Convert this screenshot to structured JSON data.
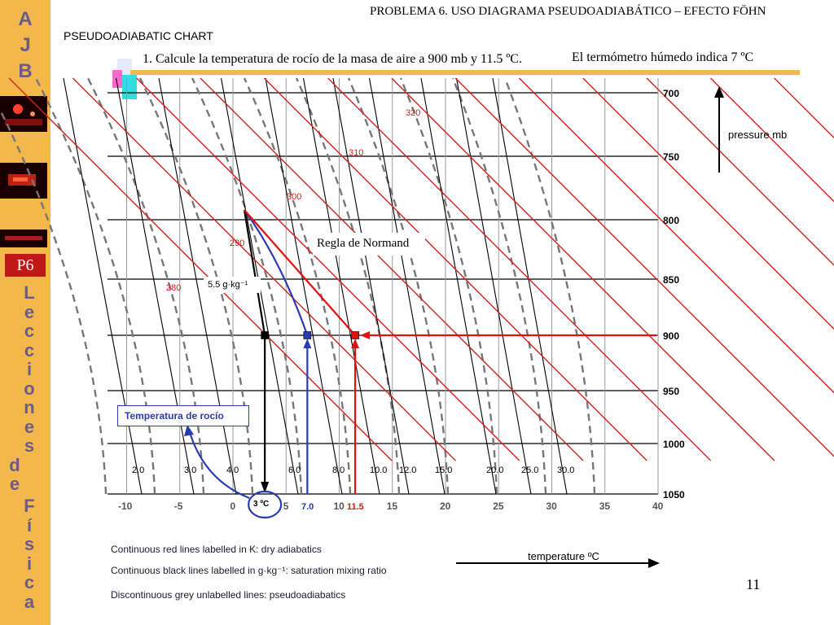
{
  "slide": {
    "heading": "PROBLEMA 6. USO DIAGRAMA PSEUDOADIABÁTICO – EFECTO FÖHN",
    "chart_title": "PSEUDOADIABATIC CHART",
    "question": "1. Calcule la temperatura de rocío de la masa de aire a 900 mb y 11.5 ºC.",
    "wet_bulb_note": "El termómetro húmedo indica 7 ºC",
    "page_number": "11",
    "sidebar": {
      "letters": [
        "A",
        "J",
        "B"
      ],
      "badge": "P6",
      "vertical_word_1": [
        "L",
        "e",
        "c",
        "c",
        "i",
        "o",
        "n",
        "e",
        "s"
      ],
      "vertical_word_2": [
        "d",
        "e"
      ],
      "vertical_word_3": [
        "F",
        "í",
        "s",
        "i",
        "c",
        "a"
      ]
    },
    "legend": [
      "Continuous red lines labelled in K: dry adiabatics",
      "Continuous black lines labelled in g·kg⁻¹: saturation mixing ratio",
      "Discontinuous grey unlabelled lines: pseudoadiabatics"
    ],
    "pressure_axis_label": "pressure mb",
    "temperature_axis_label": "temperature ºC",
    "annotations": {
      "normand": "Regla de Normand",
      "mixing_ratio": "5.5 g·kg⁻¹",
      "dew_point_box": "Temperatura de rocío",
      "dew_point_value": "3 ºC",
      "wet_bulb_value": "7.0",
      "dry_bulb_value": "11.5"
    },
    "colors": {
      "sidebar": "#f2b84b",
      "dry_adiabat": "#d42020",
      "mixing_ratio_line": "#000000",
      "pseudoadiabat": "#777777",
      "construction_blue": "#2b3bb0",
      "construction_red": "#e01010"
    }
  },
  "chart_data": {
    "type": "thermodynamic-diagram",
    "pressure_levels_mb": [
      "700",
      "750",
      "800",
      "850",
      "900",
      "950",
      "1000",
      "1050"
    ],
    "temperature_ticks_c": [
      "-10",
      "-5",
      "0",
      "5",
      "10",
      "15",
      "20",
      "25",
      "30",
      "35",
      "40"
    ],
    "mixing_ratio_labels": [
      "2.0",
      "3.0",
      "4.0",
      "6.0",
      "8.0",
      "10.0",
      "12.0",
      "15.0",
      "20.0",
      "25.0",
      "30.0"
    ],
    "dry_adiabat_labels_k": [
      "280",
      "290",
      "300",
      "310",
      "320"
    ],
    "points": [
      {
        "name": "dew point",
        "p_mb": 900,
        "t_c": 3,
        "color": "#000000"
      },
      {
        "name": "wet bulb",
        "p_mb": 900,
        "t_c": 7,
        "color": "#2b3bb0"
      },
      {
        "name": "air",
        "p_mb": 900,
        "t_c": 11.5,
        "color": "#e01010"
      }
    ]
  }
}
